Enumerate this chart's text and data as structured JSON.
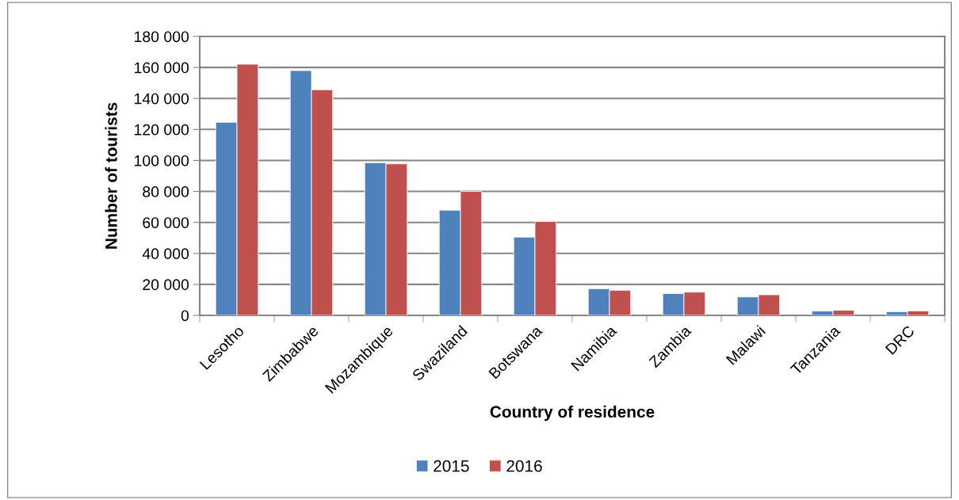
{
  "chart_data": {
    "type": "bar",
    "xlabel": "Country of residence",
    "ylabel": "Number of tourists",
    "categories": [
      "Lesotho",
      "Zimbabwe",
      "Mozambique",
      "Swaziland",
      "Botswana",
      "Namibia",
      "Zambia",
      "Malawi",
      "Tanzania",
      "DRC"
    ],
    "series": [
      {
        "name": "2015",
        "color": "#4f81bd",
        "values": [
          124600,
          158000,
          98500,
          67900,
          50500,
          17200,
          14100,
          11900,
          2800,
          2400
        ]
      },
      {
        "name": "2016",
        "color": "#c0504d",
        "values": [
          162100,
          145600,
          97800,
          80000,
          60600,
          16200,
          15000,
          13300,
          3300,
          2900
        ]
      }
    ],
    "ylim": [
      0,
      180000
    ],
    "yticks": [
      0,
      {
        "value": 20000,
        "label": "20 000"
      },
      {
        "value": 40000,
        "label": "40 000"
      },
      {
        "value": 60000,
        "label": "60 000"
      },
      {
        "value": 80000,
        "label": "80 000"
      },
      {
        "value": 100000,
        "label": "100 000"
      },
      {
        "value": 120000,
        "label": "120 000"
      },
      {
        "value": 140000,
        "label": "140 000"
      },
      {
        "value": 160000,
        "label": "160 000"
      },
      {
        "value": 180000,
        "label": "180 000"
      }
    ],
    "grid": "y",
    "legend": "bottom"
  }
}
